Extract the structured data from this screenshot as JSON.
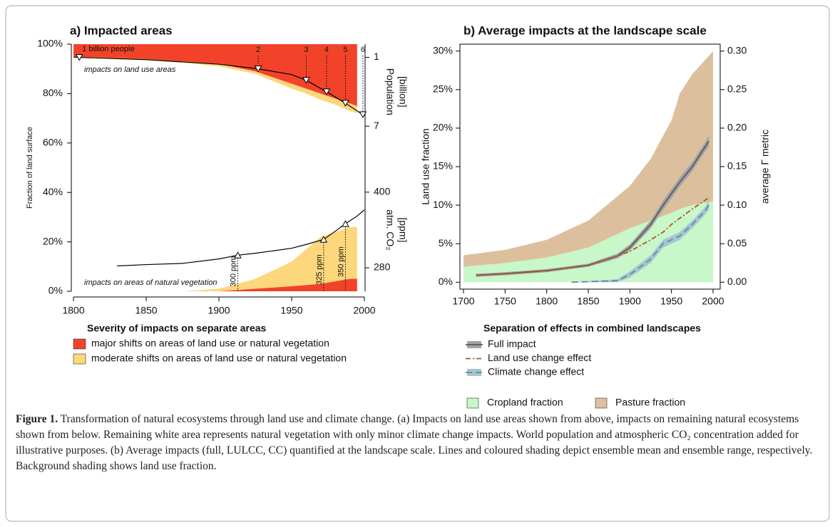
{
  "chart_data": [
    {
      "type": "area",
      "title": "a) Impacted areas",
      "ylabel": "Fraction of land surface",
      "xlim": [
        1798.5,
        2000.5
      ],
      "xticks": [
        1800,
        1850,
        1900,
        1950,
        2000
      ],
      "ylim": [
        0,
        100
      ],
      "yticks": [
        {
          "value": 0,
          "label": "0%"
        },
        {
          "value": 20,
          "label": "20%"
        },
        {
          "value": 40,
          "label": "40%"
        },
        {
          "value": 60,
          "label": "60%"
        },
        {
          "value": 80,
          "label": "80%"
        },
        {
          "value": 100,
          "label": "100%"
        }
      ],
      "x": [
        1800,
        1825,
        1850,
        1875,
        1900,
        1925,
        1950,
        1960,
        1970,
        1980,
        1990,
        1995
      ],
      "series": [
        {
          "name": "major shifts on areas of land use or natural vegetation",
          "color": "#f2432a",
          "land_use_edge": [
            95,
            94.5,
            94,
            93,
            92,
            89,
            84,
            82,
            80,
            78,
            76,
            75
          ],
          "natural_edge": [
            0,
            0,
            0,
            0,
            0,
            1,
            2,
            2.5,
            3,
            4,
            5,
            5
          ]
        },
        {
          "name": "moderate shifts on areas of land use or natural vegetation",
          "color": "#fdd77c",
          "land_use_edge": [
            94.5,
            94,
            93.5,
            92.5,
            91,
            88,
            82,
            80,
            77.5,
            75.5,
            73,
            72
          ],
          "natural_edge": [
            0,
            0,
            0,
            0,
            1,
            5,
            12,
            17,
            22,
            24,
            26,
            26
          ]
        }
      ],
      "legend_title": "Severity of impacts on separate areas",
      "annotations": [
        "impacts on land use areas",
        "impacts on areas of natural vegetation"
      ],
      "population": {
        "label": [
          "Population",
          "[billion]"
        ],
        "lim": [
          21.4,
          -0.15
        ],
        "ticks": [
          1,
          7
        ],
        "x": [
          1800,
          1804,
          1850,
          1900,
          1927,
          1950,
          1960,
          1974,
          1987,
          1999,
          2000
        ],
        "values": [
          0.98,
          1,
          1.2,
          1.6,
          2,
          2.5,
          3,
          4,
          5,
          6,
          6.1
        ],
        "markers": [
          {
            "x": 1804,
            "value": 1,
            "label": "1 billion people"
          },
          {
            "x": 1927,
            "value": 2,
            "label": "2"
          },
          {
            "x": 1960,
            "value": 3,
            "label": "3"
          },
          {
            "x": 1974,
            "value": 4,
            "label": "4"
          },
          {
            "x": 1987,
            "value": 5,
            "label": "5"
          },
          {
            "x": 1999,
            "value": 6,
            "label": "6"
          }
        ]
      },
      "co2": {
        "label": [
          "atm. CO₂",
          "[ppm]"
        ],
        "lim": [
          242.7,
          634.9
        ],
        "ticks": [
          280,
          400
        ],
        "x": [
          1830,
          1850,
          1875,
          1900,
          1913,
          1925,
          1950,
          1960,
          1972,
          1980,
          1987,
          1995,
          2000
        ],
        "values": [
          283,
          285,
          287,
          294,
          300,
          303,
          311,
          317,
          325,
          338,
          350,
          362,
          372
        ],
        "markers": [
          {
            "x": 1913,
            "value": 300,
            "label": "300 ppm"
          },
          {
            "x": 1972,
            "value": 325,
            "label": "325 ppm"
          },
          {
            "x": 1987,
            "value": 350,
            "label": "350 ppm"
          }
        ]
      }
    },
    {
      "type": "line",
      "title": "b) Average impacts at the landscape scale",
      "ylabel": "Land use fraction",
      "y2label": "average Γ metric",
      "xlim": [
        1695.7,
        2008.6
      ],
      "xticks": [
        1700,
        1750,
        1800,
        1850,
        1900,
        1950,
        2000
      ],
      "ylim": [
        -0.9,
        30.9
      ],
      "yticks": [
        {
          "value": 0,
          "label": "0%"
        },
        {
          "value": 5,
          "label": "5%"
        },
        {
          "value": 10,
          "label": "10%"
        },
        {
          "value": 15,
          "label": "15%"
        },
        {
          "value": 20,
          "label": "20%"
        },
        {
          "value": 25,
          "label": "25%"
        },
        {
          "value": 30,
          "label": "30%"
        }
      ],
      "y2lim": [
        -0.009,
        0.309
      ],
      "y2ticks": [
        {
          "value": 0,
          "label": "0.00"
        },
        {
          "value": 0.05,
          "label": "0.05"
        },
        {
          "value": 0.1,
          "label": "0.10"
        },
        {
          "value": 0.15,
          "label": "0.15"
        },
        {
          "value": 0.2,
          "label": "0.20"
        },
        {
          "value": 0.25,
          "label": "0.25"
        },
        {
          "value": 0.3,
          "label": "0.30"
        }
      ],
      "areas": {
        "x": [
          1700,
          1750,
          1800,
          1850,
          1900,
          1925,
          1950,
          1960,
          1975,
          2000
        ],
        "series": [
          {
            "name": "Cropland fraction",
            "color": "#c8f7c9",
            "values": [
              2,
              2.5,
              3.2,
              4.5,
              7,
              8,
              9,
              9.5,
              10,
              10.5
            ]
          },
          {
            "name": "Pasture fraction",
            "color": "#dcc09e",
            "values": [
              1.5,
              1.7,
              2.3,
              3.5,
              5.5,
              8,
              12,
              15,
              17,
              19.5
            ]
          }
        ]
      },
      "legend_title": "Separation of effects in combined landscapes",
      "series": [
        {
          "name": "Full impact",
          "color": "#5a5a5a",
          "band_color": "#a3a3a3",
          "axis": "y2",
          "x": [
            1715,
            1750,
            1800,
            1850,
            1885,
            1900,
            1925,
            1940,
            1950,
            1960,
            1975,
            1990,
            1995
          ],
          "values": [
            0.009,
            0.011,
            0.015,
            0.022,
            0.034,
            0.045,
            0.075,
            0.1,
            0.115,
            0.13,
            0.15,
            0.175,
            0.183
          ],
          "lower": [
            0.007,
            0.009,
            0.013,
            0.02,
            0.031,
            0.041,
            0.07,
            0.094,
            0.109,
            0.124,
            0.144,
            0.169,
            0.176
          ],
          "upper": [
            0.011,
            0.013,
            0.017,
            0.024,
            0.037,
            0.049,
            0.08,
            0.106,
            0.121,
            0.136,
            0.156,
            0.181,
            0.19
          ]
        },
        {
          "name": "Land use change effect",
          "color": "#b5541c",
          "axis": "y2",
          "dash": "7 3 2 3",
          "x": [
            1715,
            1750,
            1800,
            1850,
            1885,
            1900,
            1925,
            1940,
            1950,
            1960,
            1975,
            1990,
            1995
          ],
          "values": [
            0.009,
            0.011,
            0.015,
            0.022,
            0.034,
            0.04,
            0.055,
            0.065,
            0.075,
            0.083,
            0.095,
            0.106,
            0.11
          ]
        },
        {
          "name": "Climate change effect",
          "color": "#5b8ca3",
          "band_color": "#a8c5cf",
          "axis": "y2",
          "dash": "9 5",
          "x": [
            1830,
            1885,
            1900,
            1925,
            1940,
            1950,
            1960,
            1975,
            1990,
            1995
          ],
          "values": [
            0,
            0.002,
            0.01,
            0.03,
            0.05,
            0.055,
            0.06,
            0.075,
            0.092,
            0.1
          ],
          "lower": [
            0,
            0,
            0.006,
            0.025,
            0.045,
            0.05,
            0.055,
            0.07,
            0.087,
            0.094
          ],
          "upper": [
            0,
            0.004,
            0.014,
            0.035,
            0.055,
            0.06,
            0.065,
            0.08,
            0.097,
            0.106
          ]
        }
      ]
    }
  ],
  "caption": {
    "label": "Figure 1.",
    "text": "Transformation of natural ecosystems through land use and climate change. (a) Impacts on land use areas shown from above, impacts on remaining natural ecosystems shown from below. Remaining white area represents natural vegetation with only minor climate change impacts. World population and atmospheric CO₂ concentration added for illustrative purposes. (b) Average impacts (full, LULCC, CC) quantified at the landscape scale. Lines and coloured shading depict ensemble mean and ensemble range, respectively. Background shading shows land use fraction."
  }
}
